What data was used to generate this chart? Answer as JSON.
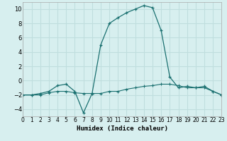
{
  "xlabel": "Humidex (Indice chaleur)",
  "x": [
    0,
    1,
    2,
    3,
    4,
    5,
    6,
    7,
    8,
    9,
    10,
    11,
    12,
    13,
    14,
    15,
    16,
    17,
    18,
    19,
    20,
    21,
    22,
    23
  ],
  "line1_y": [
    -2,
    -2,
    -1.8,
    -1.5,
    -0.7,
    -0.5,
    -1.5,
    -4.5,
    -1.8,
    5,
    8,
    8.8,
    9.5,
    10,
    10.5,
    10.2,
    7,
    0.5,
    -1,
    -0.8,
    -1,
    -0.8,
    -1.5,
    -2
  ],
  "line2_y": [
    -2,
    -2,
    -2,
    -1.7,
    -1.5,
    -1.5,
    -1.7,
    -1.8,
    -1.8,
    -1.8,
    -1.5,
    -1.5,
    -1.2,
    -1,
    -0.8,
    -0.7,
    -0.5,
    -0.5,
    -0.7,
    -1,
    -1,
    -1,
    -1.5,
    -2
  ],
  "line_color": "#1a7070",
  "bg_color": "#d7efef",
  "grid_color": "#c0dede",
  "ylim": [
    -5,
    11
  ],
  "xlim": [
    0,
    23
  ],
  "yticks": [
    -4,
    -2,
    0,
    2,
    4,
    6,
    8,
    10
  ],
  "xticks": [
    0,
    1,
    2,
    3,
    4,
    5,
    6,
    7,
    8,
    9,
    10,
    11,
    12,
    13,
    14,
    15,
    16,
    17,
    18,
    19,
    20,
    21,
    22,
    23
  ]
}
